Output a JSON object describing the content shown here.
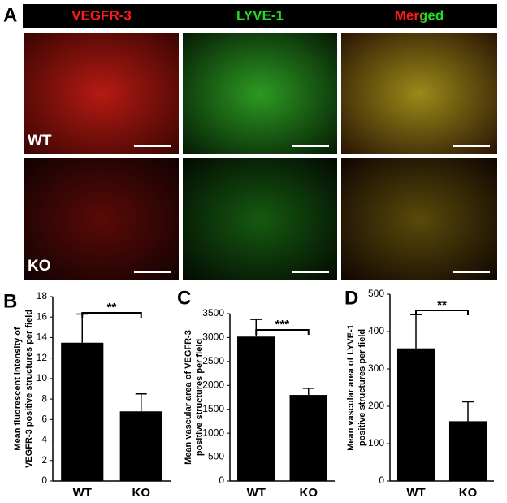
{
  "panel_a": {
    "label": "A",
    "columns": [
      "VEGFR-3",
      "LYVE-1",
      "Merged"
    ],
    "rows": [
      "WT",
      "KO"
    ]
  },
  "chart_data": [
    {
      "type": "bar",
      "panel": "B",
      "ylabel": [
        "Mean fluorescent intensity of",
        "VEGFR-3 positive structures per field"
      ],
      "categories": [
        "WT",
        "KO"
      ],
      "values": [
        13.5,
        6.8
      ],
      "errors": [
        2.8,
        1.7
      ],
      "color": "#000000",
      "ylim": [
        0,
        18
      ],
      "yticks": [
        0,
        2,
        4,
        6,
        8,
        10,
        12,
        14,
        16,
        18
      ],
      "significance": "**"
    },
    {
      "type": "bar",
      "panel": "C",
      "ylabel": [
        "Mean vascular area of VEGFR-3",
        "positive structures per field"
      ],
      "categories": [
        "WT",
        "KO"
      ],
      "values": [
        3020,
        1800
      ],
      "errors": [
        360,
        140
      ],
      "color": "#000000",
      "ylim": [
        0,
        3500
      ],
      "yticks": [
        0,
        500,
        1000,
        1500,
        2000,
        2500,
        3000,
        3500
      ],
      "significance": "***"
    },
    {
      "type": "bar",
      "panel": "D",
      "ylabel": [
        "Mean vascular area of LYVE-1",
        "positive structures per field"
      ],
      "categories": [
        "WT",
        "KO"
      ],
      "values": [
        355,
        160
      ],
      "errors": [
        90,
        52
      ],
      "color": "#000000",
      "ylim": [
        0,
        500
      ],
      "yticks": [
        0,
        100,
        200,
        300,
        400,
        500
      ],
      "significance": "**"
    }
  ]
}
